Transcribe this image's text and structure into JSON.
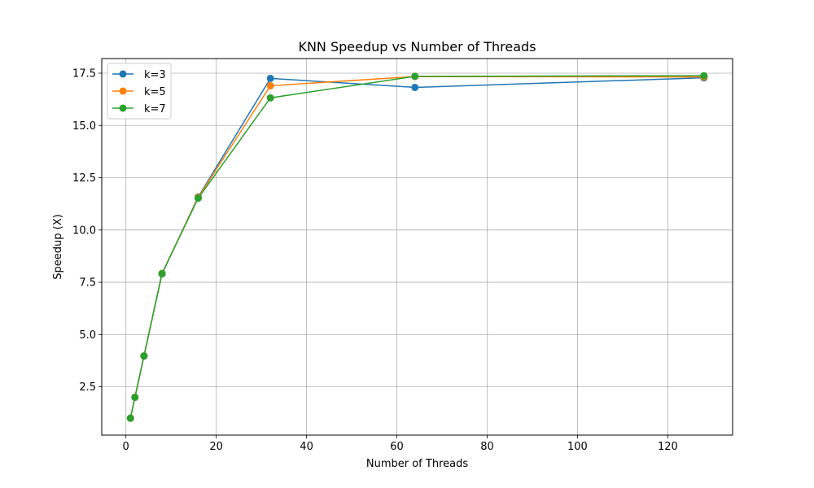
{
  "chart_data": {
    "type": "line",
    "title": "KNN Speedup vs Number of Threads",
    "xlabel": "Number of Threads",
    "ylabel": "Speedup (X)",
    "xlim": [
      -5.35,
      134.35
    ],
    "ylim": [
      0.19,
      18.2
    ],
    "xticks": [
      0,
      20,
      40,
      60,
      80,
      100,
      120
    ],
    "xtick_labels": [
      "0",
      "20",
      "40",
      "60",
      "80",
      "100",
      "120"
    ],
    "yticks": [
      2.5,
      5.0,
      7.5,
      10.0,
      12.5,
      15.0,
      17.5
    ],
    "ytick_labels": [
      "2.5",
      "5.0",
      "7.5",
      "10.0",
      "12.5",
      "15.0",
      "17.5"
    ],
    "grid": true,
    "legend_position": "upper-left",
    "x": [
      1,
      2,
      4,
      8,
      16,
      32,
      64,
      128
    ],
    "series": [
      {
        "name": "k=3",
        "color": "#1f77b4",
        "values": [
          1.0,
          2.0,
          3.97,
          7.9,
          11.58,
          17.25,
          16.82,
          17.28
        ]
      },
      {
        "name": "k=5",
        "color": "#ff7f0e",
        "values": [
          1.0,
          2.0,
          3.98,
          7.92,
          11.56,
          16.9,
          17.34,
          17.32
        ]
      },
      {
        "name": "k=7",
        "color": "#2ca02c",
        "values": [
          1.0,
          2.0,
          3.98,
          7.92,
          11.52,
          16.32,
          17.35,
          17.38
        ]
      }
    ]
  }
}
